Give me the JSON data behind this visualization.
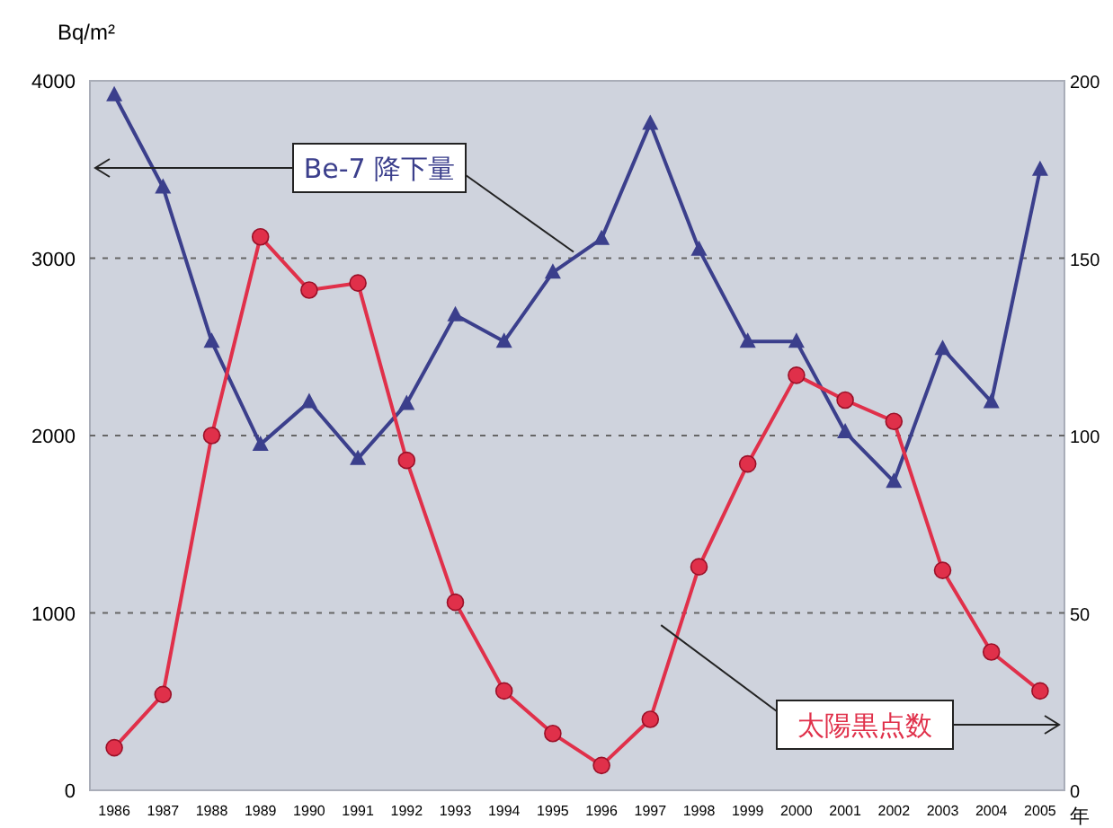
{
  "chart_data": {
    "type": "line",
    "xlabel": "年",
    "ylabel": "Bq/m²",
    "categories": [
      "1986",
      "1987",
      "1988",
      "1989",
      "1990",
      "1991",
      "1992",
      "1993",
      "1994",
      "1995",
      "1996",
      "1997",
      "1998",
      "1999",
      "2000",
      "2001",
      "2002",
      "2003",
      "2004",
      "2005"
    ],
    "series": [
      {
        "name": "Be-7 降下量",
        "color": "#3b3f8c",
        "marker": "triangle",
        "values": [
          3920,
          3400,
          2530,
          1950,
          2190,
          1870,
          2180,
          2680,
          2530,
          2920,
          3110,
          3760,
          3050,
          2530,
          2530,
          2020,
          1740,
          2490,
          2190,
          3500
        ]
      },
      {
        "name": "太陽黒点数",
        "color": "#e0304a",
        "marker": "circle",
        "axis": "y2",
        "values": [
          12,
          27,
          100,
          156,
          141,
          143,
          93,
          53,
          28,
          16,
          7,
          20,
          63,
          92,
          117,
          110,
          104,
          62,
          39,
          28
        ]
      }
    ],
    "ylim": [
      0,
      4000
    ],
    "yticks": [
      0,
      1000,
      2000,
      3000,
      4000
    ],
    "y2lim": [
      0,
      200
    ],
    "y2ticks": [
      0,
      50,
      100,
      150,
      200
    ],
    "grid": "y",
    "legend": false,
    "line_style": "solid"
  }
}
